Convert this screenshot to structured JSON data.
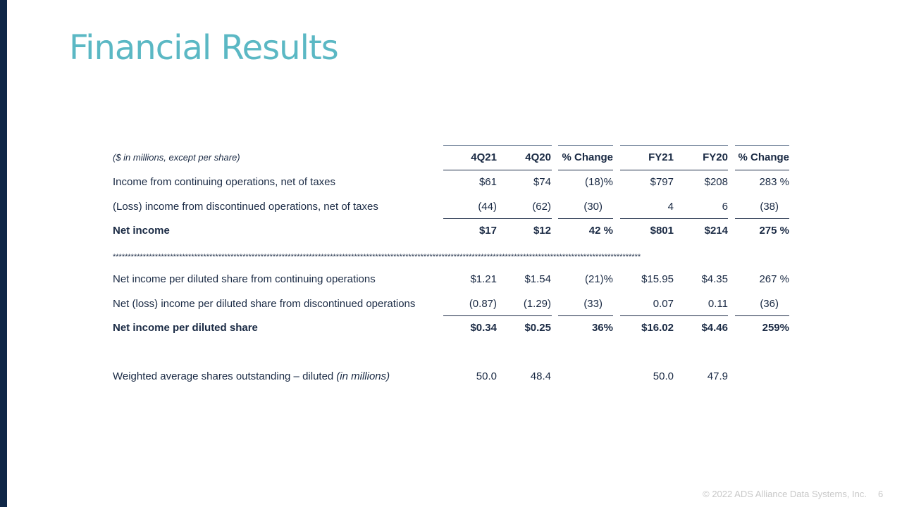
{
  "title": "Financial Results",
  "table": {
    "header_note": "($ in millions, except per share)",
    "columns": [
      "4Q21",
      "4Q20",
      "% Change",
      "FY21",
      "FY20",
      "% Change"
    ],
    "rows": [
      {
        "label": "Income from continuing operations, net of taxes",
        "cells": [
          "$61",
          "$74",
          "(18)%",
          "$797",
          "$208",
          "283 %"
        ]
      },
      {
        "label": "(Loss) income from discontinued operations, net of taxes",
        "cells": [
          "(44)",
          "(62)",
          "(30)",
          "4",
          "6",
          "(38)"
        ]
      },
      {
        "label": "Net income",
        "bold": true,
        "cells": [
          "$17",
          "$12",
          "42 %",
          "$801",
          "$214",
          "275 %"
        ]
      },
      {
        "label": "Net income per diluted share from continuing operations",
        "cells": [
          "$1.21",
          "$1.54",
          "(21)%",
          "$15.95",
          "$4.35",
          "267 %"
        ]
      },
      {
        "label": "Net (loss) income per diluted share from discontinued operations",
        "cells": [
          "(0.87)",
          "(1.29)",
          "(33)",
          "0.07",
          "0.11",
          "(36)"
        ]
      },
      {
        "label": "Net income per diluted share",
        "bold": true,
        "cells": [
          "$0.34",
          "$0.25",
          "36%",
          "$16.02",
          "$4.46",
          "259%"
        ]
      },
      {
        "label": "Weighted average shares outstanding – diluted",
        "label_note": "(in millions)",
        "cells": [
          "50.0",
          "48.4",
          null,
          "50.0",
          "47.9",
          null
        ]
      }
    ],
    "separator": "*******************************************************************************************************************************************************************************"
  },
  "footer": "© 2022 ADS Alliance Data Systems, Inc.",
  "page_number": "6"
}
